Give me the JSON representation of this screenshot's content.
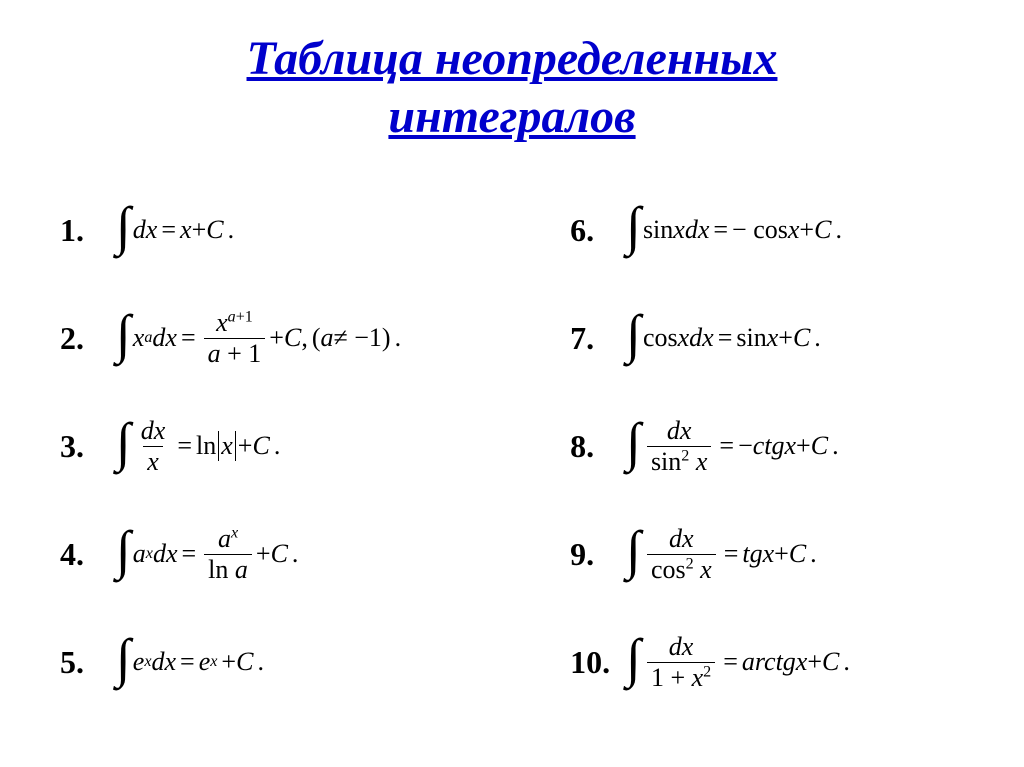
{
  "title_line1": "Таблица неопределенных",
  "title_line2": "интегралов",
  "title_color": "#0000cc",
  "background_color": "#ffffff",
  "text_color": "#000000",
  "number_fontsize": 32,
  "formula_fontsize": 26,
  "title_fontsize": 48,
  "rows": {
    "r1": {
      "n": "1.",
      "lhs": "∫ dx",
      "rhs": "x + C ."
    },
    "r2": {
      "n": "2.",
      "lhs": "∫ xᵃ dx",
      "rhs": "xᵃ⁺¹ / (a+1) + C , (a ≠ −1) ."
    },
    "r3": {
      "n": "3.",
      "lhs": "∫ dx / x",
      "rhs": "ln|x| + C ."
    },
    "r4": {
      "n": "4.",
      "lhs": "∫ aˣ dx",
      "rhs": "aˣ / ln a + C ."
    },
    "r5": {
      "n": "5.",
      "lhs": "∫ eˣ dx",
      "rhs": "eˣ + C ."
    },
    "r6": {
      "n": "6.",
      "lhs": "∫ sin x dx",
      "rhs": "− cos x + C ."
    },
    "r7": {
      "n": "7.",
      "lhs": "∫ cos x dx",
      "rhs": "sin x + C ."
    },
    "r8": {
      "n": "8.",
      "lhs": "∫ dx / sin² x",
      "rhs": "− ctg x + C ."
    },
    "r9": {
      "n": "9.",
      "lhs": "∫ dx / cos² x",
      "rhs": "tg x + C ."
    },
    "r10": {
      "n": "10.",
      "lhs": "∫ dx / (1 + x²)",
      "rhs": "arctg x + C ."
    }
  }
}
